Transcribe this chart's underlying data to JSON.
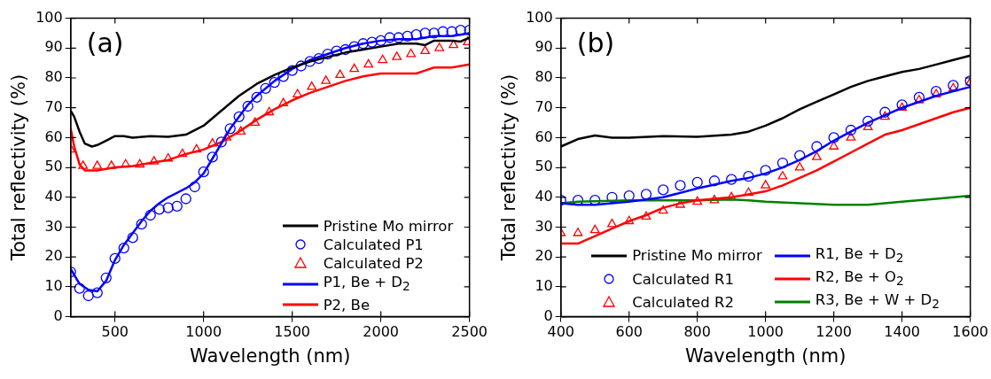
{
  "chart_data": [
    {
      "type": "line",
      "xlabel": "Wavelength (nm)",
      "ylabel": "Total reflectivity (%)",
      "annotations": [
        "(a)"
      ],
      "xlim": [
        250,
        2500
      ],
      "xticks": [
        500,
        1000,
        1500,
        2000,
        2500
      ],
      "ylim": [
        0,
        100
      ],
      "yticks": [
        0,
        10,
        20,
        30,
        40,
        50,
        60,
        70,
        80,
        90,
        100
      ],
      "legend": "bottom right",
      "series": [
        {
          "name": "Pristine Mo mirror",
          "type": "line",
          "color": "#000000",
          "x": [
            250,
            270,
            300,
            330,
            370,
            400,
            450,
            500,
            550,
            600,
            700,
            800,
            900,
            1000,
            1100,
            1200,
            1300,
            1400,
            1500,
            1600,
            1700,
            1800,
            1900,
            2000,
            2100,
            2200,
            2250,
            2300,
            2400,
            2450,
            2500
          ],
          "values": [
            69,
            67,
            62,
            58,
            57,
            57.5,
            59,
            60.5,
            60.5,
            60,
            60.5,
            60.3,
            61,
            64,
            69,
            74,
            78,
            81,
            83.5,
            85.5,
            87,
            88.5,
            89.5,
            90.5,
            91.5,
            91.5,
            91,
            92.5,
            92.5,
            92.2,
            93.5
          ]
        },
        {
          "name": "Calculated P1",
          "type": "scatter",
          "marker": "circle",
          "color": "#0000ff",
          "x": [
            250,
            300,
            350,
            400,
            450,
            500,
            550,
            600,
            650,
            700,
            750,
            800,
            850,
            900,
            950,
            1000,
            1050,
            1100,
            1150,
            1200,
            1250,
            1300,
            1350,
            1400,
            1450,
            1500,
            1550,
            1600,
            1650,
            1700,
            1750,
            1800,
            1850,
            1900,
            1950,
            2000,
            2050,
            2100,
            2150,
            2200,
            2250,
            2300,
            2350,
            2400,
            2450,
            2500
          ],
          "values": [
            15,
            9.5,
            7,
            8,
            13,
            19.5,
            23,
            26.5,
            31,
            34,
            36,
            36.5,
            37,
            39.5,
            43.5,
            48.5,
            53.5,
            58.5,
            63,
            67,
            70.5,
            73.5,
            76.5,
            78.5,
            80.5,
            82.5,
            84,
            85.5,
            86.5,
            88,
            89,
            89.5,
            90.5,
            91.5,
            92,
            92.5,
            93.5,
            93.5,
            94,
            94.5,
            95,
            95,
            95.5,
            95.5,
            96,
            96
          ]
        },
        {
          "name": "Calculated P2",
          "type": "scatter",
          "marker": "triangle",
          "color": "#ff0000",
          "x": [
            250,
            320,
            400,
            480,
            560,
            640,
            720,
            800,
            880,
            960,
            1050,
            1130,
            1210,
            1290,
            1370,
            1450,
            1530,
            1610,
            1690,
            1770,
            1850,
            1930,
            2010,
            2090,
            2170,
            2250,
            2330,
            2410,
            2490
          ],
          "values": [
            56,
            50.5,
            50.5,
            50.5,
            51,
            51,
            52,
            53,
            54.5,
            56,
            58,
            60,
            62,
            65,
            68.5,
            71.5,
            74.5,
            77,
            79,
            81,
            83,
            84.5,
            86,
            87,
            88,
            89,
            90,
            91,
            92
          ]
        },
        {
          "name": "P1, Be + D$_{2}$",
          "type": "line",
          "color": "#0000ff",
          "x": [
            250,
            300,
            350,
            400,
            450,
            500,
            550,
            600,
            650,
            700,
            750,
            800,
            850,
            900,
            950,
            1000,
            1050,
            1100,
            1150,
            1200,
            1250,
            1300,
            1400,
            1500,
            1600,
            1700,
            1800,
            1900,
            2000,
            2100,
            2200,
            2300,
            2400,
            2500
          ],
          "values": [
            16,
            11,
            9,
            8.5,
            12,
            19,
            24,
            28,
            32,
            35.5,
            38,
            40,
            41.5,
            43,
            45,
            48,
            53,
            58,
            63,
            67,
            71,
            74,
            79,
            83,
            86,
            88,
            90,
            91.5,
            92.5,
            93,
            93,
            94,
            94,
            95
          ]
        },
        {
          "name": "P2, Be",
          "type": "line",
          "color": "#ff0000",
          "x": [
            250,
            270,
            300,
            330,
            400,
            500,
            600,
            700,
            800,
            900,
            1000,
            1100,
            1200,
            1300,
            1400,
            1500,
            1600,
            1700,
            1800,
            1900,
            2000,
            2100,
            2200,
            2250,
            2300,
            2400,
            2450,
            2500
          ],
          "values": [
            63,
            57,
            51,
            49,
            49,
            50,
            50.5,
            51.5,
            52.5,
            54.5,
            56,
            58.5,
            62,
            66,
            69.5,
            72.5,
            75,
            77,
            79,
            80.5,
            81.5,
            81.5,
            81.5,
            82.5,
            83.5,
            83.5,
            84,
            84.5
          ]
        }
      ]
    },
    {
      "type": "line",
      "xlabel": "Wavelength (nm)",
      "ylabel": "Total reflectivity (%)",
      "annotations": [
        "(b)"
      ],
      "xlim": [
        400,
        1600
      ],
      "xticks": [
        400,
        600,
        800,
        1000,
        1200,
        1400,
        1600
      ],
      "ylim": [
        0,
        100
      ],
      "yticks": [
        0,
        10,
        20,
        30,
        40,
        50,
        60,
        70,
        80,
        90,
        100
      ],
      "legend": "bottom",
      "series": [
        {
          "name": "Pristine Mo mirror",
          "type": "line",
          "color": "#000000",
          "x": [
            400,
            450,
            500,
            550,
            600,
            700,
            800,
            900,
            950,
            1000,
            1050,
            1100,
            1150,
            1200,
            1250,
            1300,
            1350,
            1400,
            1450,
            1500,
            1550,
            1600
          ],
          "values": [
            57,
            59.5,
            60.7,
            60,
            60,
            60.5,
            60.3,
            61,
            62,
            64,
            66.5,
            69.5,
            72,
            74.5,
            77,
            79,
            80.5,
            82,
            83,
            84.5,
            86,
            87.5
          ]
        },
        {
          "name": "Calculated R1",
          "type": "scatter",
          "marker": "circle",
          "color": "#0000ff",
          "x": [
            400,
            450,
            500,
            550,
            600,
            650,
            700,
            750,
            800,
            850,
            900,
            950,
            1000,
            1050,
            1100,
            1150,
            1200,
            1250,
            1300,
            1350,
            1400,
            1450,
            1500,
            1550,
            1600
          ],
          "values": [
            39,
            39,
            39,
            40,
            40.5,
            41,
            42.5,
            44,
            45,
            45.5,
            46,
            47,
            49,
            51.5,
            54,
            57,
            60,
            62.5,
            65.5,
            68.5,
            71,
            73.5,
            75.5,
            77.5,
            79
          ]
        },
        {
          "name": "Calculated R2",
          "type": "scatter",
          "marker": "triangle",
          "color": "#ff0000",
          "x": [
            400,
            450,
            500,
            550,
            600,
            650,
            700,
            750,
            800,
            850,
            900,
            950,
            1000,
            1050,
            1100,
            1150,
            1200,
            1250,
            1300,
            1350,
            1400,
            1450,
            1500,
            1550,
            1600
          ],
          "values": [
            28,
            28,
            29,
            31,
            32,
            33.5,
            35.5,
            37.5,
            38.5,
            39,
            40,
            41.5,
            44,
            47,
            50,
            53.5,
            57,
            60,
            63.5,
            67,
            70,
            72.5,
            74.5,
            76.5,
            78.5
          ]
        },
        {
          "name": "R1, Be + D$_{2}$",
          "type": "line",
          "color": "#0000ff",
          "x": [
            400,
            450,
            500,
            550,
            600,
            700,
            800,
            900,
            950,
            1000,
            1050,
            1100,
            1150,
            1200,
            1250,
            1300,
            1350,
            1400,
            1450,
            1500,
            1550,
            1600
          ],
          "values": [
            38,
            37.5,
            37.5,
            38,
            38.5,
            40,
            43,
            45.5,
            46.5,
            48,
            50,
            52.5,
            55.5,
            59,
            62,
            65,
            67.5,
            70,
            72,
            74,
            75.5,
            77
          ]
        },
        {
          "name": "R2, Be + O$_{2}$",
          "type": "line",
          "color": "#ff0000",
          "x": [
            400,
            450,
            500,
            550,
            600,
            650,
            700,
            750,
            800,
            850,
            900,
            950,
            1000,
            1050,
            1100,
            1150,
            1200,
            1250,
            1300,
            1350,
            1400,
            1450,
            1500,
            1550,
            1600
          ],
          "values": [
            24.5,
            24.5,
            27,
            29.5,
            32,
            34,
            36.5,
            38,
            39,
            39.5,
            40,
            41,
            42,
            44,
            46.5,
            49,
            52,
            55,
            58,
            61,
            62.5,
            64.5,
            66.5,
            68.5,
            70
          ]
        },
        {
          "name": "R3, Be + W + D$_{2}$",
          "type": "line",
          "color": "#008000",
          "x": [
            400,
            450,
            500,
            600,
            700,
            800,
            900,
            950,
            1000,
            1100,
            1200,
            1300,
            1400,
            1500,
            1600
          ],
          "values": [
            38,
            38.5,
            38.7,
            39,
            39,
            39,
            39.3,
            39,
            38.5,
            38,
            37.5,
            37.5,
            38.5,
            39.5,
            40.5
          ]
        }
      ]
    }
  ]
}
